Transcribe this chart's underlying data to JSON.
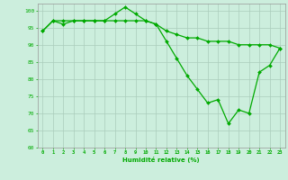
{
  "xlabel": "Humidité relative (%)",
  "ylabel": "",
  "background_color": "#cceedd",
  "grid_color": "#aaccbb",
  "line_color": "#00aa00",
  "marker_color": "#00aa00",
  "xlim_min": -0.5,
  "xlim_max": 23.5,
  "ylim_min": 60,
  "ylim_max": 102,
  "yticks": [
    60,
    65,
    70,
    75,
    80,
    85,
    90,
    95,
    100
  ],
  "xticks": [
    0,
    1,
    2,
    3,
    4,
    5,
    6,
    7,
    8,
    9,
    10,
    11,
    12,
    13,
    14,
    15,
    16,
    17,
    18,
    19,
    20,
    21,
    22,
    23
  ],
  "series": [
    [
      94,
      97,
      97,
      97,
      97,
      97,
      97,
      99,
      101,
      99,
      97,
      96,
      91,
      86,
      81,
      77,
      73,
      74,
      67,
      71,
      70,
      82,
      84,
      89
    ],
    [
      94,
      97,
      96,
      97,
      97,
      97,
      97,
      97,
      97,
      97,
      97,
      96,
      94,
      93,
      92,
      92,
      91,
      91,
      91,
      90,
      90,
      90,
      90,
      89
    ]
  ],
  "figwidth": 3.2,
  "figheight": 2.0,
  "dpi": 100
}
